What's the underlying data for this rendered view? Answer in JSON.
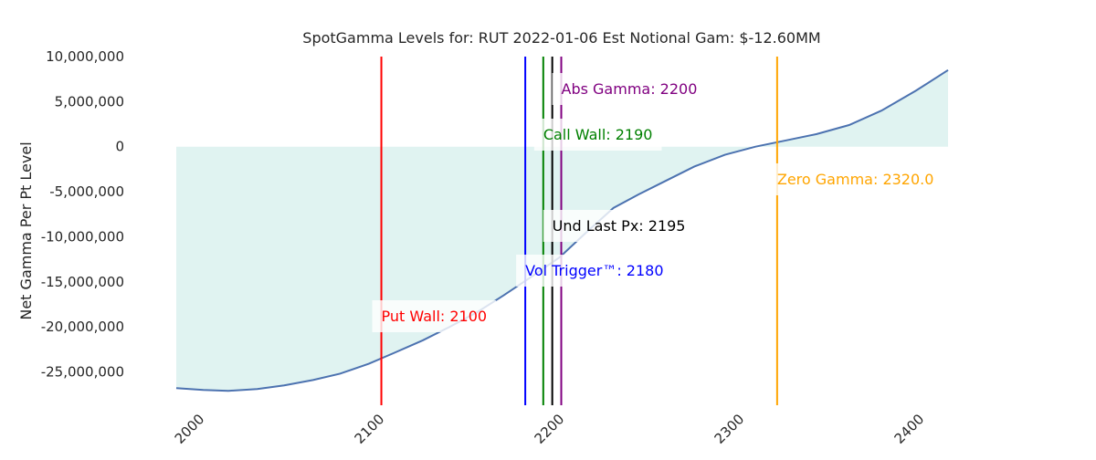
{
  "chart_data": {
    "type": "area-line",
    "title": "SpotGamma Levels for: RUT  2022-01-06 Est Notional Gam: $-12.60MM",
    "y_label": "Net Gamma Per Pt Level",
    "x": [
      1986,
      2001,
      2015,
      2031,
      2046,
      2062,
      2077,
      2093,
      2107,
      2123,
      2138,
      2153,
      2168,
      2183,
      2199,
      2214,
      2229,
      2243,
      2257,
      2274,
      2291,
      2308,
      2325,
      2342,
      2360,
      2378,
      2397,
      2415
    ],
    "series": [
      {
        "name": "Net Gamma",
        "color": "#4c72b0",
        "fill": "#e0f3f1",
        "values": [
          -26800000,
          -27000000,
          -27100000,
          -26900000,
          -26500000,
          -25900000,
          -25200000,
          -24100000,
          -22900000,
          -21500000,
          -20000000,
          -18400000,
          -16500000,
          -14500000,
          -12300000,
          -9500000,
          -6800000,
          -5300000,
          -3900000,
          -2200000,
          -900000,
          0,
          700000,
          1400000,
          2400000,
          4000000,
          6200000,
          8500000
        ]
      }
    ],
    "xlim": [
      1986,
      2415
    ],
    "ylim": [
      -28700000,
      10000000
    ],
    "xticks": [
      2000,
      2100,
      2200,
      2300,
      2400
    ],
    "yticks": [
      {
        "value": 10000000,
        "label": "10,000,000"
      },
      {
        "value": 5000000,
        "label": "5,000,000"
      },
      {
        "value": 0,
        "label": "0"
      },
      {
        "value": -5000000,
        "label": "-5,000,000"
      },
      {
        "value": -10000000,
        "label": "-10,000,000"
      },
      {
        "value": -15000000,
        "label": "-15,000,000"
      },
      {
        "value": -20000000,
        "label": "-20,000,000"
      },
      {
        "value": -25000000,
        "label": "-25,000,000"
      }
    ],
    "levels": [
      {
        "label": "Put Wall: 2100",
        "value": 2100,
        "color": "#ff0000"
      },
      {
        "label": "Vol Trigger™: 2180",
        "value": 2180,
        "color": "#0000ff"
      },
      {
        "label": "Call Wall: 2190",
        "value": 2190,
        "color": "#008000"
      },
      {
        "label": "Und Last Px: 2195",
        "value": 2195,
        "color": "#000000"
      },
      {
        "label": "Abs Gamma: 2200",
        "value": 2200,
        "color": "#800080"
      },
      {
        "label": "Zero Gamma: 2320.0",
        "value": 2320,
        "color": "#ffa500"
      }
    ]
  }
}
